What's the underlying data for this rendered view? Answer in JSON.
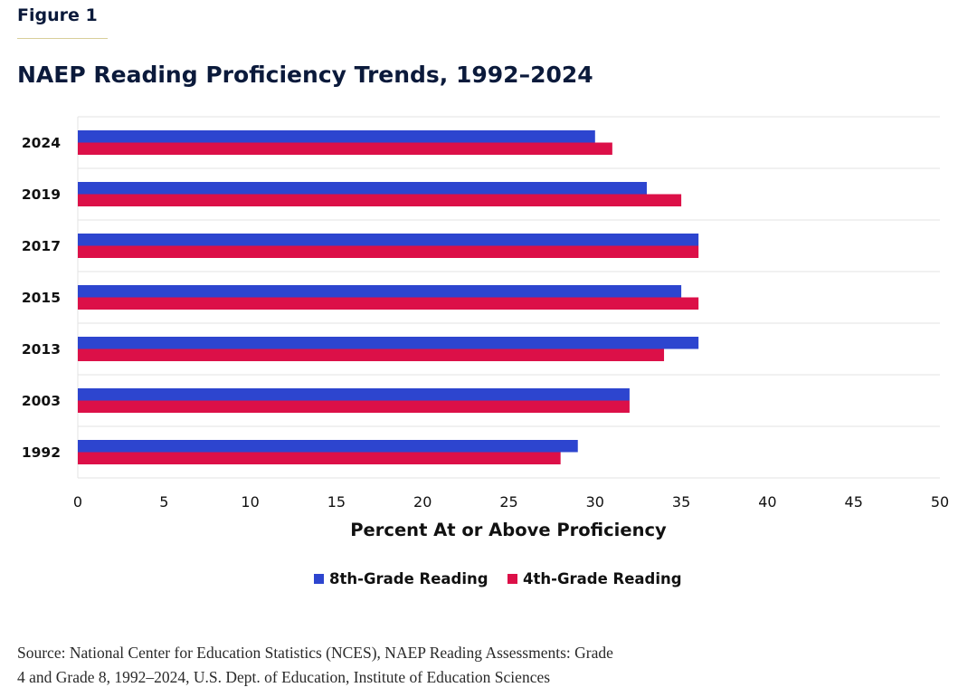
{
  "figure_label": "Figure 1",
  "source": {
    "line1": "Source: National Center for Education Statistics (NCES), NAEP Reading Assessments: Grade",
    "line2": "4 and Grade 8, 1992–2024, U.S. Dept. of Education, Institute of Education Sciences"
  },
  "colors": {
    "series_8th": "#2d45cf",
    "series_4th": "#dc1048",
    "grid": "#e3e3e3",
    "text": "#0b1a3b"
  },
  "chart_data": {
    "type": "bar",
    "orientation": "horizontal",
    "title": "NAEP Reading Proficiency Trends, 1992–2024",
    "xlabel": "Percent At or Above Proficiency",
    "ylabel": "",
    "categories": [
      "2024",
      "2019",
      "2017",
      "2015",
      "2013",
      "2003",
      "1992"
    ],
    "series": [
      {
        "name": "8th-Grade Reading",
        "color": "#2d45cf",
        "values": [
          30,
          33,
          36,
          35,
          36,
          32,
          29
        ]
      },
      {
        "name": "4th-Grade Reading",
        "color": "#dc1048",
        "values": [
          31,
          35,
          36,
          36,
          34,
          32,
          28
        ]
      }
    ],
    "xlim": [
      0,
      50
    ],
    "xticks": [
      0,
      5,
      10,
      15,
      20,
      25,
      30,
      35,
      40,
      45,
      50
    ],
    "grid": "horizontal category separators",
    "legend_position": "bottom-center"
  }
}
